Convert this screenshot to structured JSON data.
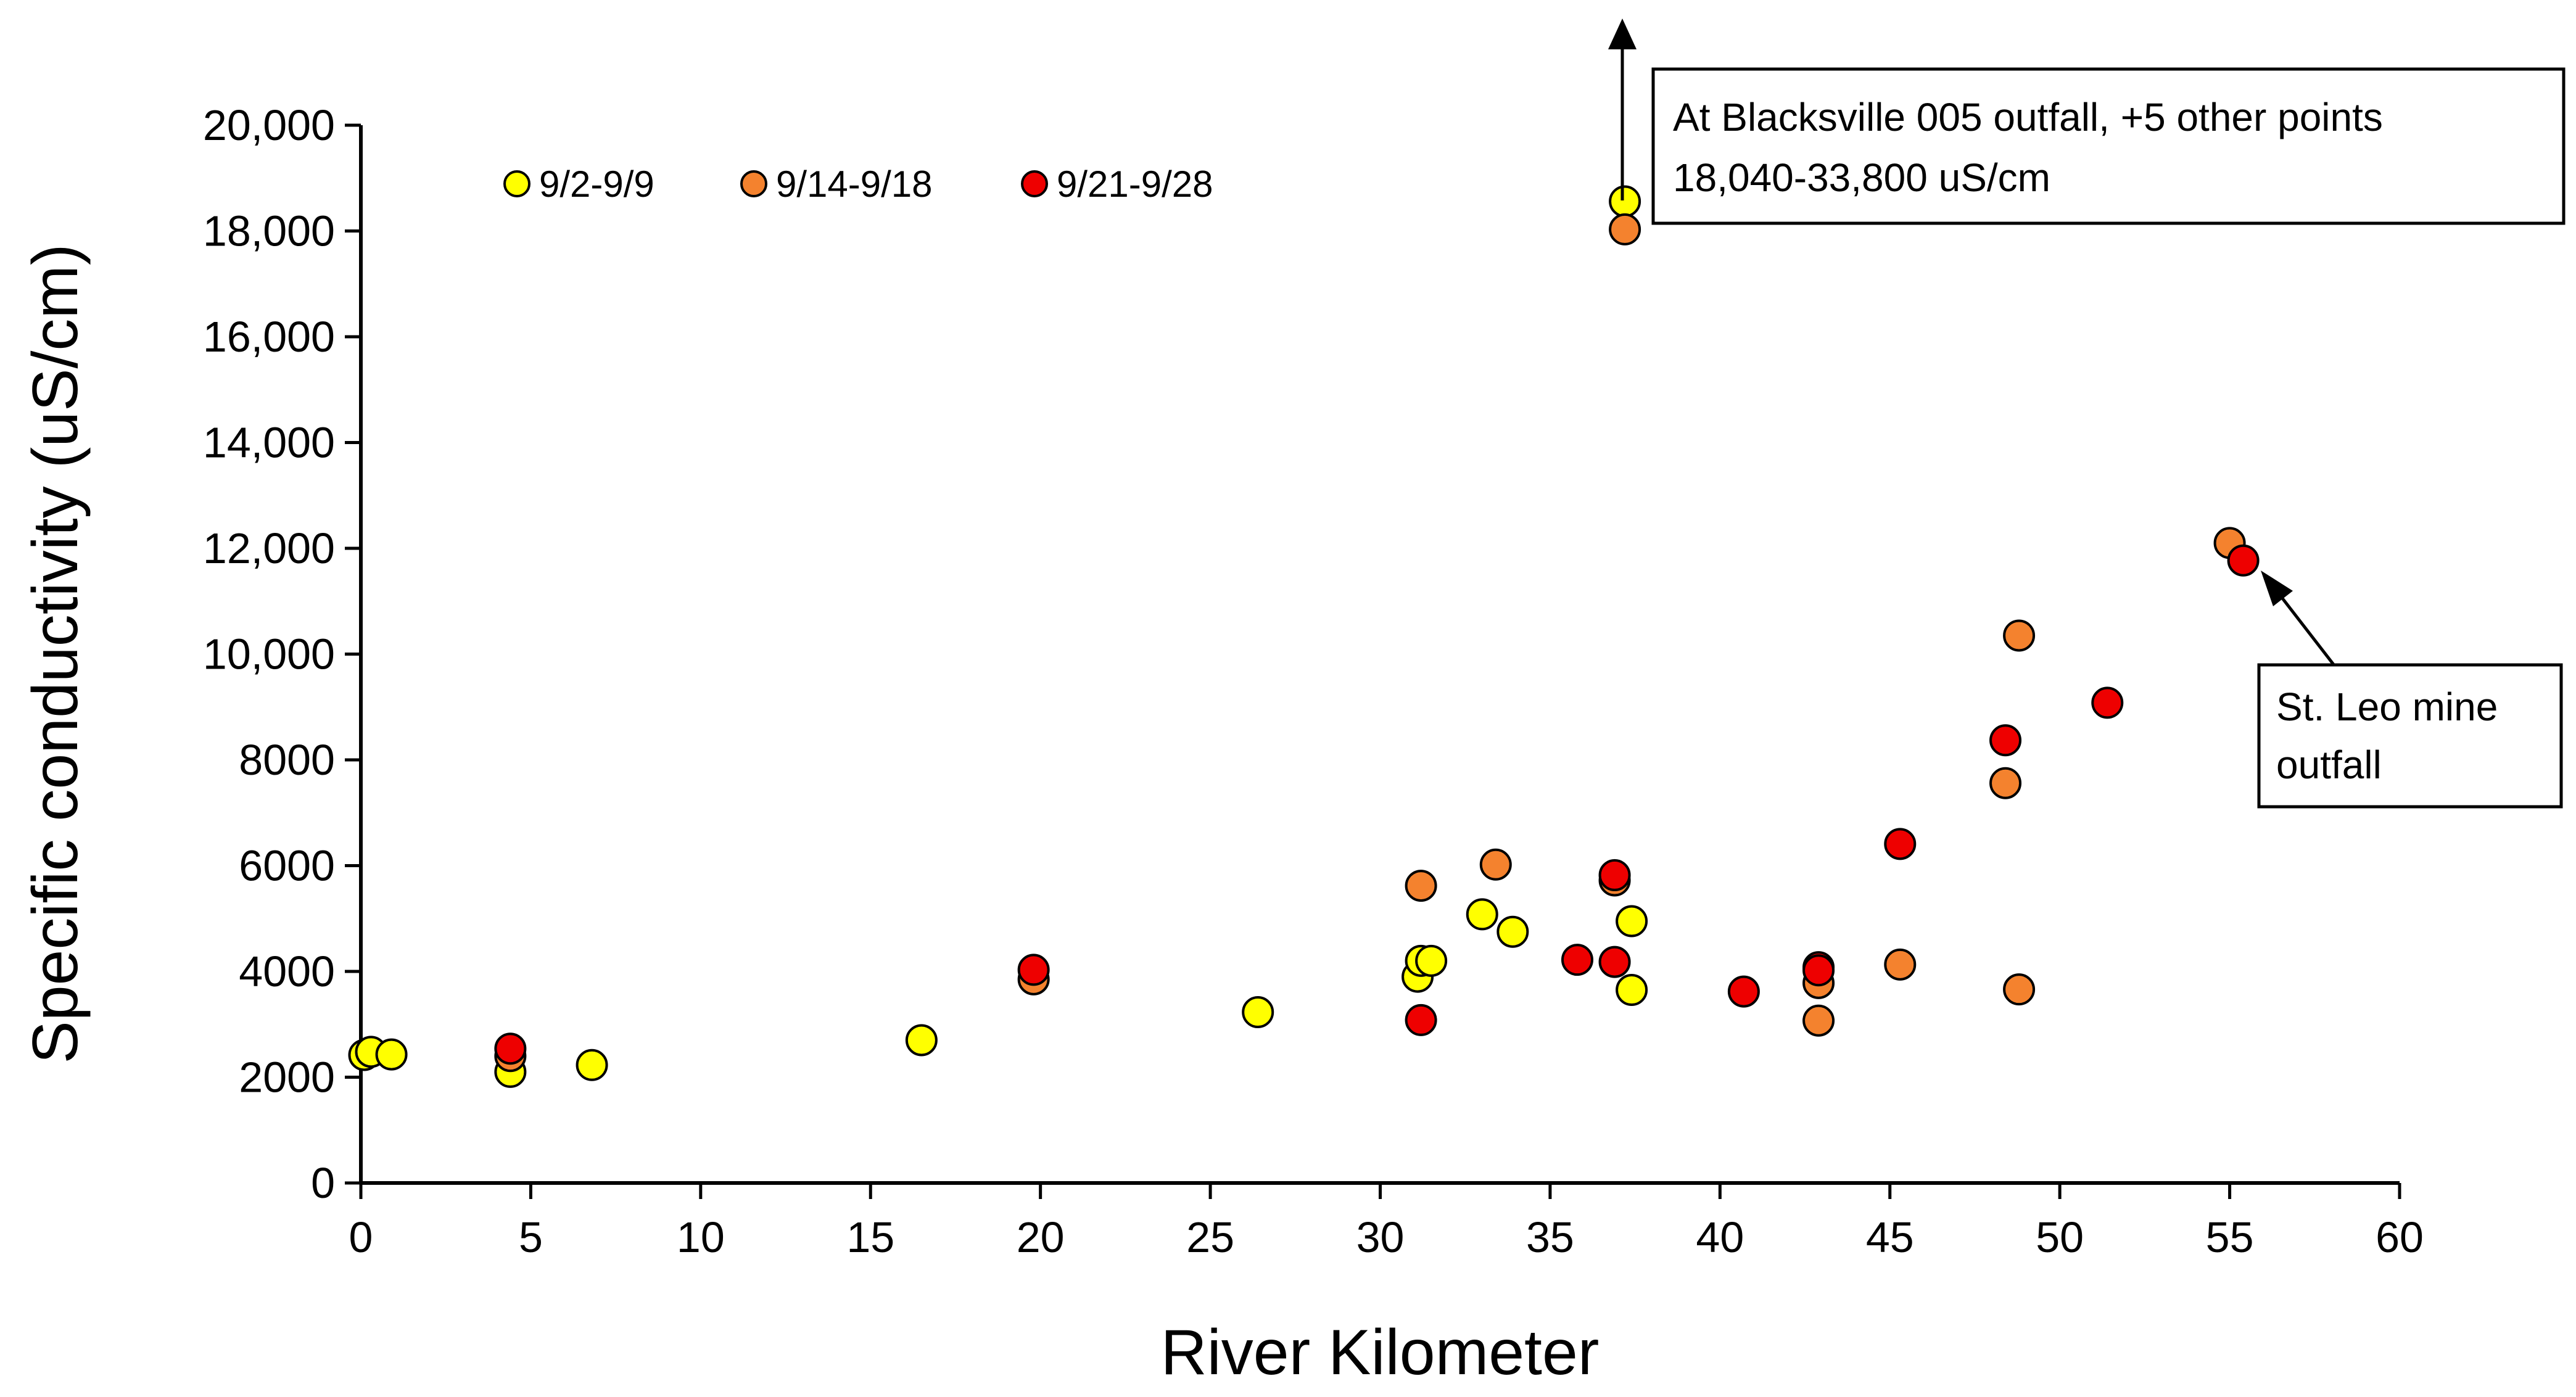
{
  "chart_data": {
    "type": "scatter",
    "title": "",
    "xlabel": "River Kilometer",
    "ylabel": "Specific conductivity (uS/cm)",
    "xlim": [
      0,
      60
    ],
    "ylim": [
      0,
      20000
    ],
    "x_ticks": [
      0,
      5,
      10,
      15,
      20,
      25,
      30,
      35,
      40,
      45,
      50,
      55,
      60
    ],
    "x_tick_labels": [
      "0",
      "5",
      "10",
      "15",
      "20",
      "25",
      "30",
      "35",
      "40",
      "45",
      "50",
      "55",
      "60"
    ],
    "y_ticks": [
      0,
      2000,
      4000,
      6000,
      8000,
      10000,
      12000,
      14000,
      16000,
      18000,
      20000
    ],
    "y_tick_labels": [
      "0",
      "2000",
      "4000",
      "6000",
      "8000",
      "10,000",
      "12,000",
      "14,000",
      "16,000",
      "18,000",
      "20,000"
    ],
    "grid": false,
    "legend_position": "top-left",
    "series": [
      {
        "name": "9/2-9/9",
        "color": "#FFFF00",
        "points": [
          [
            0.1,
            2420
          ],
          [
            0.3,
            2480
          ],
          [
            0.9,
            2430
          ],
          [
            4.4,
            2100
          ],
          [
            6.8,
            2230
          ],
          [
            16.5,
            2700
          ],
          [
            26.4,
            3230
          ],
          [
            31.1,
            3900
          ],
          [
            31.2,
            4200
          ],
          [
            31.5,
            4200
          ],
          [
            33.0,
            5080
          ],
          [
            33.9,
            4750
          ],
          [
            37.4,
            4950
          ],
          [
            37.4,
            3650
          ],
          [
            37.2,
            18560
          ]
        ]
      },
      {
        "name": "9/14-9/18",
        "color": "#F4822E",
        "points": [
          [
            4.4,
            2400
          ],
          [
            19.8,
            3850
          ],
          [
            31.2,
            5620
          ],
          [
            33.4,
            6020
          ],
          [
            36.9,
            5720
          ],
          [
            42.9,
            3780
          ],
          [
            42.9,
            3070
          ],
          [
            45.3,
            4130
          ],
          [
            48.4,
            7560
          ],
          [
            48.8,
            10350
          ],
          [
            48.8,
            3660
          ],
          [
            55.0,
            12100
          ],
          [
            37.2,
            18030
          ]
        ]
      },
      {
        "name": "9/21-9/28",
        "color": "#EE0000",
        "points": [
          [
            4.4,
            2540
          ],
          [
            19.8,
            4030
          ],
          [
            31.2,
            3080
          ],
          [
            35.8,
            4220
          ],
          [
            36.9,
            5820
          ],
          [
            36.9,
            4180
          ],
          [
            40.7,
            3620
          ],
          [
            42.9,
            4080
          ],
          [
            42.9,
            4020
          ],
          [
            45.3,
            6410
          ],
          [
            48.4,
            8370
          ],
          [
            51.4,
            9080
          ],
          [
            55.4,
            11770
          ]
        ]
      }
    ],
    "annotations": [
      {
        "name": "blacksville",
        "lines": [
          "At Blacksville 005 outfall, +5 other points",
          "18,040-33,800 uS/cm"
        ],
        "target": [
          37.2,
          18600
        ],
        "note": "arrow pointing upward"
      },
      {
        "name": "st-leo",
        "lines": [
          "St. Leo mine",
          "outfall"
        ],
        "target": [
          55.5,
          11700
        ]
      }
    ]
  }
}
